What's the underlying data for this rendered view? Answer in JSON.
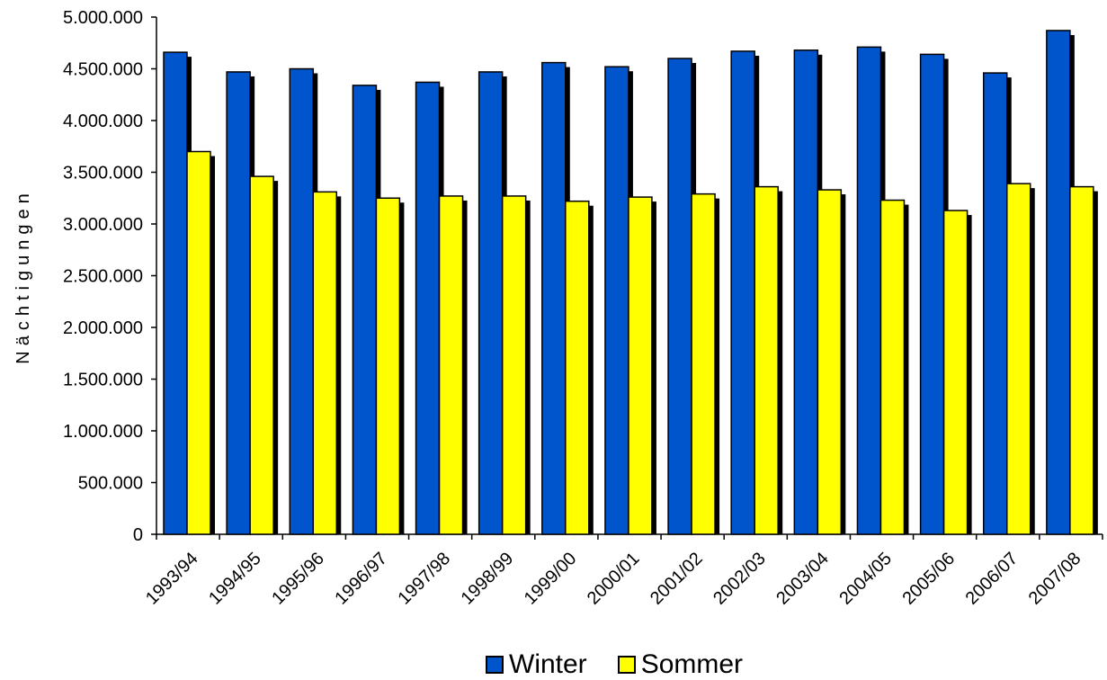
{
  "chart_data": {
    "type": "bar",
    "ylabel": "Nächtigungen",
    "xlabel": "",
    "ylim": [
      0,
      5000000
    ],
    "yticks": [
      0,
      500000,
      1000000,
      1500000,
      2000000,
      2500000,
      3000000,
      3500000,
      4000000,
      4500000,
      5000000
    ],
    "ytick_labels": [
      "0",
      "500.000",
      "1.000.000",
      "1.500.000",
      "2.000.000",
      "2.500.000",
      "3.000.000",
      "3.500.000",
      "4.000.000",
      "4.500.000",
      "5.000.000"
    ],
    "categories": [
      "1993/94",
      "1994/95",
      "1995/96",
      "1996/97",
      "1997/98",
      "1998/99",
      "1999/00",
      "2000/01",
      "2001/02",
      "2002/03",
      "2003/04",
      "2004/05",
      "2005/06",
      "2006/07",
      "2007/08"
    ],
    "series": [
      {
        "name": "Winter",
        "color": "#0055CC",
        "values": [
          4660000,
          4470000,
          4500000,
          4340000,
          4370000,
          4470000,
          4560000,
          4520000,
          4600000,
          4670000,
          4680000,
          4710000,
          4640000,
          4460000,
          4870000
        ]
      },
      {
        "name": "Sommer",
        "color": "#FFFF00",
        "values": [
          3700000,
          3460000,
          3310000,
          3250000,
          3270000,
          3270000,
          3220000,
          3260000,
          3290000,
          3360000,
          3330000,
          3230000,
          3130000,
          3390000,
          3360000
        ]
      }
    ],
    "legend_position": "bottom-center",
    "grid": false
  }
}
